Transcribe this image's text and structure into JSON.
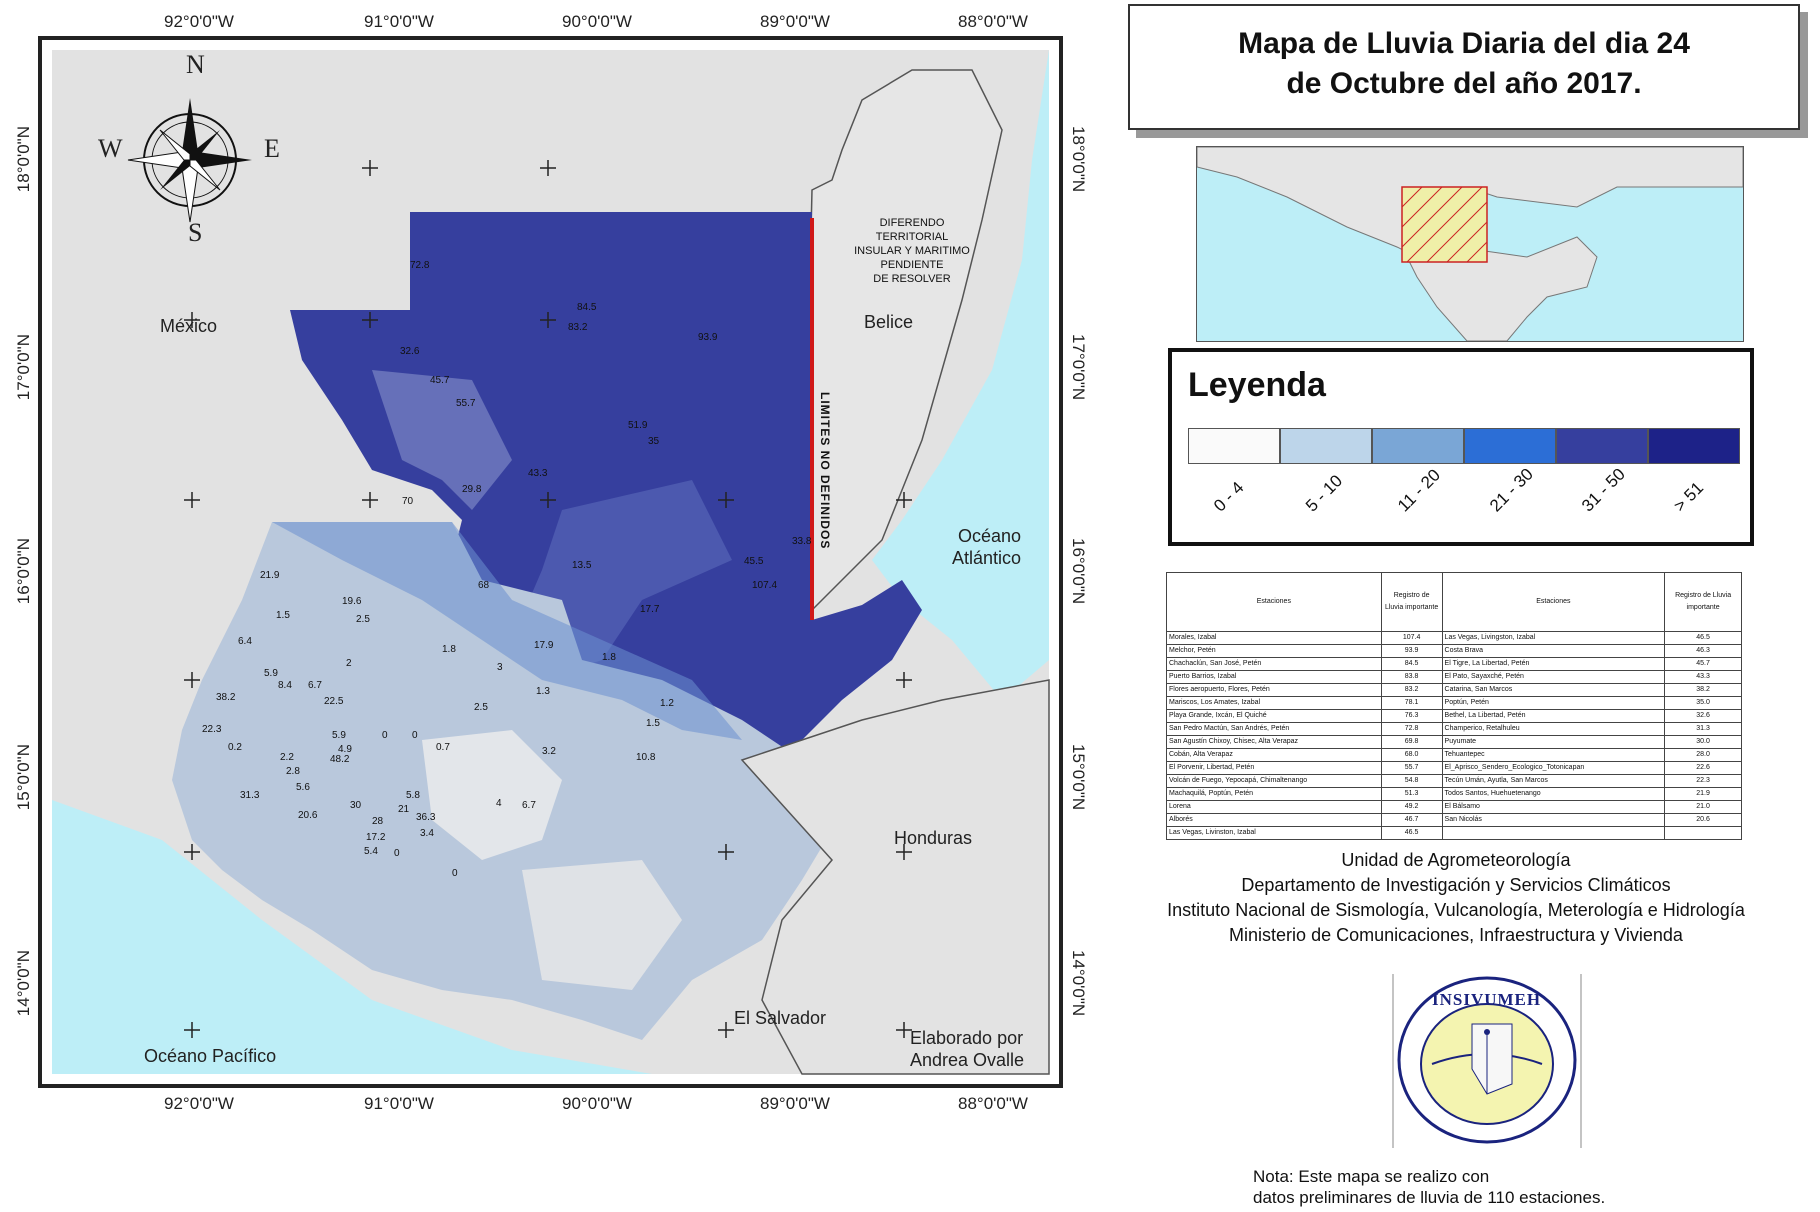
{
  "title": {
    "line1": "Mapa de  Lluvia Diaria del dia 24",
    "line2": "de Octubre del año 2017."
  },
  "axis": {
    "top_longitudes": [
      "92°0'0\"W",
      "91°0'0\"W",
      "90°0'0\"W",
      "89°0'0\"W",
      "88°0'0\"W"
    ],
    "bottom_longitudes": [
      "92°0'0\"W",
      "91°0'0\"W",
      "90°0'0\"W",
      "89°0'0\"W",
      "88°0'0\"W"
    ],
    "latitudes": [
      "18°0'0\"N",
      "17°0'0\"N",
      "16°0'0\"N",
      "15°0'0\"N",
      "14°0'0\"N"
    ]
  },
  "compass": {
    "n": "N",
    "s": "S",
    "e": "E",
    "w": "W"
  },
  "map_labels": {
    "mexico": "México",
    "belice": "Belice",
    "honduras": "Honduras",
    "el_salvador": "El Salvador",
    "oceano_pacifico": "Océano Pacífico",
    "oceano_atlantico_1": "Océano",
    "oceano_atlantico_2": "Atlántico",
    "diferendo": [
      "DIFERENDO",
      "TERRITORIAL",
      "INSULAR Y MARITIMO",
      "PENDIENTE",
      "DE RESOLVER"
    ],
    "limites": "LIMITES NO DEFINIDOS",
    "elaborado_1": "Elaborado por",
    "elaborado_2": "Andrea Ovalle"
  },
  "station_values": [
    "72.8",
    "84.5",
    "83.2",
    "93.9",
    "32.6",
    "45.7",
    "55.7",
    "51.9",
    "35",
    "43.3",
    "29.8",
    "70",
    "13.5",
    "68",
    "17.7",
    "45.5",
    "107.4",
    "33.8",
    "21.9",
    "1.5",
    "19.6",
    "2.5",
    "6.4",
    "5.9",
    "38.2",
    "8.4",
    "6.7",
    "22.5",
    "2",
    "1.8",
    "3",
    "17.9",
    "1.8",
    "1.3",
    "1.2",
    "22.3",
    "0.2",
    "5.9",
    "4.9",
    "2.2",
    "48.2",
    "2.8",
    "5.6",
    "0",
    "0",
    "0.7",
    "2.5",
    "3.2",
    "1.5",
    "10.8",
    "31.3",
    "20.6",
    "30",
    "28",
    "21",
    "36.3",
    "3.4",
    "17.2",
    "5.4",
    "0",
    "0",
    "4",
    "6.7",
    "5.8"
  ],
  "legend": {
    "title": "Leyenda",
    "classes": [
      {
        "label": "0 - 4",
        "color": "#fafafa"
      },
      {
        "label": "5 - 10",
        "color": "#bdd5ea"
      },
      {
        "label": "11 - 20",
        "color": "#7aa6d6"
      },
      {
        "label": "21 - 30",
        "color": "#2c6ed6"
      },
      {
        "label": "31 - 50",
        "color": "#363f9e"
      },
      {
        "label": "> 51",
        "color": "#1d2288"
      }
    ]
  },
  "table": {
    "headers": [
      "Estaciones",
      "Registro de Lluvia importante",
      "Estaciones",
      "Registro de Lluvia importante"
    ],
    "rows": [
      [
        "Morales, Izabal",
        "107.4",
        "Las Vegas, Livingston, Izabal",
        "46.5"
      ],
      [
        "Melchor, Petén",
        "93.9",
        "Costa Brava",
        "46.3"
      ],
      [
        "Chachaclún, San José, Petén",
        "84.5",
        "El Tigre, La Libertad, Petén",
        "45.7"
      ],
      [
        "Puerto Barrios, Izabal",
        "83.8",
        "El Pato, Sayaxché, Petén",
        "43.3"
      ],
      [
        "Flores aeropuerto, Flores, Petén",
        "83.2",
        "Catarina, San Marcos",
        "38.2"
      ],
      [
        "Mariscos, Los Amates, Izabal",
        "78.1",
        "Poptún, Petén",
        "35.0"
      ],
      [
        "Playa Grande, Ixcán, El Quiché",
        "76.3",
        "Bethel, La Libertad, Petén",
        "32.6"
      ],
      [
        "San Pedro Mactún, San Andrés, Petén",
        "72.8",
        "Champerico, Retalhuleu",
        "31.3"
      ],
      [
        "San Agustín Chixoy, Chisec, Alta Verapaz",
        "69.8",
        "Puyumate",
        "30.0"
      ],
      [
        "Cobán, Alta Verapaz",
        "68.0",
        "Tehuantepec",
        "28.0"
      ],
      [
        "El Porvenir, Libertad, Petén",
        "55.7",
        "El_Aprisco_Sendero_Ecologico_Totonicapan",
        "22.6"
      ],
      [
        "Volcán de Fuego, Yepocapá, Chimaltenango",
        "54.8",
        "Tecún Umán, Ayutla, San Marcos",
        "22.3"
      ],
      [
        "Machaquilá, Poptún, Petén",
        "51.3",
        "Todos Santos, Huehuetenango",
        "21.9"
      ],
      [
        "Lorena",
        "49.2",
        "El Bálsamo",
        "21.0"
      ],
      [
        "Alborés",
        "46.7",
        "San Nicolás",
        "20.6"
      ],
      [
        "Las Vegas, Livinston, Izabal",
        "46.5",
        "",
        ""
      ]
    ]
  },
  "credits": [
    "Unidad de Agrometeorología",
    "Departamento de Investigación y Servicios Climáticos",
    "Instituto Nacional de Sismología, Vulcanología, Meterología e Hidrología",
    "Ministerio de Comunicaciones, Infraestructura y Vivienda"
  ],
  "logo_text": "INSIVUMEH",
  "note": {
    "line1": "Nota: Este mapa se realizo con",
    "line2": "datos preliminares de lluvia de 110 estaciones."
  },
  "colors": {
    "ocean": "#bdeef7",
    "land": "#e2e2e2",
    "boundary_red": "#d01818"
  }
}
